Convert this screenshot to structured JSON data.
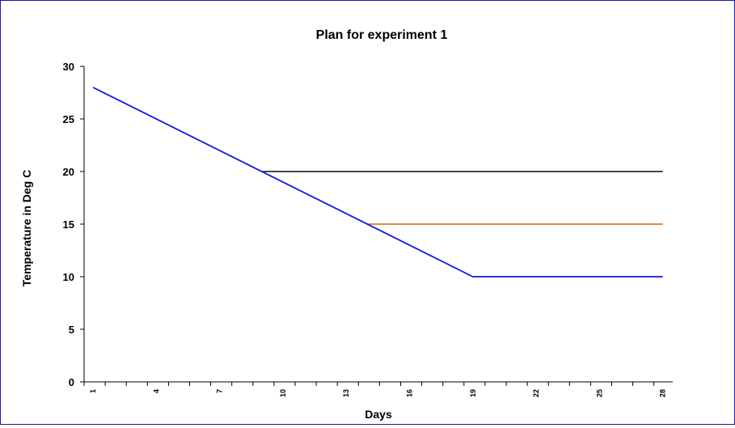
{
  "chart_data": {
    "type": "line",
    "title": "Plan for experiment 1",
    "xlabel": "Days",
    "ylabel": "Temperature in Deg C",
    "x": [
      1,
      4,
      7,
      10,
      13,
      16,
      19,
      22,
      25,
      28
    ],
    "x_tick_labels": [
      "1",
      "4",
      "7",
      "10",
      "13",
      "16",
      "19",
      "22",
      "25",
      "28"
    ],
    "xlim": [
      1,
      28
    ],
    "ylim": [
      0,
      30
    ],
    "y_ticks": [
      "0",
      "5",
      "10",
      "15",
      "20",
      "25",
      "30"
    ],
    "grid": false,
    "series": [
      {
        "color": "#1f3a1f",
        "points": [
          [
            9,
            20
          ],
          [
            28,
            20
          ]
        ]
      },
      {
        "color": "#e07a2a",
        "points": [
          [
            14,
            15
          ],
          [
            28,
            15
          ]
        ]
      },
      {
        "color": "#1414e6",
        "points": [
          [
            1,
            28
          ],
          [
            19,
            10
          ],
          [
            28,
            10
          ]
        ]
      }
    ]
  }
}
